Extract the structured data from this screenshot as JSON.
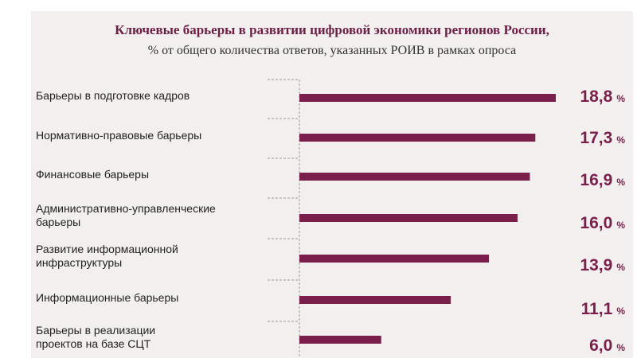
{
  "title": "Ключевые барьеры в развитии цифровой экономики регионов России,",
  "subtitle": "% от общего количества ответов, указанных РОИВ в рамках опроса",
  "colors": {
    "bar": "#7a1e4b",
    "value": "#7a1e4b",
    "label": "#222222",
    "background": "#f3efee"
  },
  "chart_data": {
    "type": "bar",
    "orientation": "horizontal",
    "categories": [
      [
        "Барьеры в подготовке кадров"
      ],
      [
        "Нормативно-правовые барьеры"
      ],
      [
        "Финансовые барьеры"
      ],
      [
        "Административно-управленческие",
        "барьеры"
      ],
      [
        "Развитие информационной",
        "инфраструктуры"
      ],
      [
        "Информационные барьеры"
      ],
      [
        "Барьеры в реализации",
        "проектов на базе СЦТ"
      ]
    ],
    "values": [
      18.8,
      17.3,
      16.9,
      16.0,
      13.9,
      11.1,
      6.0
    ],
    "value_labels": [
      "18,8",
      "17,3",
      "16,9",
      "16,0",
      "13,9",
      "11,1",
      "6,0"
    ],
    "unit": "%",
    "xlim": [
      0,
      18.8
    ],
    "grid": false,
    "legend": false
  }
}
